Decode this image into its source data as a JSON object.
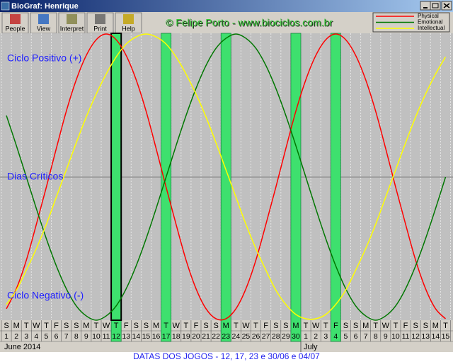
{
  "window": {
    "title": "BioGraf: Henrique",
    "toolbar": [
      "People",
      "View",
      "Interpret",
      "Print",
      "Help"
    ],
    "watermark": "© Felipe Porto - www.biociclos.com.br",
    "footer": "DATAS DOS JOGOS - 12, 17, 23 e 30/06 e 04/07"
  },
  "chart_data": {
    "type": "line",
    "annotations": [
      "Ciclo Positivo (+)",
      "Dias Críticos",
      "Ciclo Negativo (-)"
    ],
    "weekdays": [
      "S",
      "M",
      "T",
      "W",
      "T",
      "F",
      "S",
      "S",
      "M",
      "T",
      "W",
      "T",
      "F",
      "S",
      "S",
      "M",
      "T",
      "W",
      "T",
      "F",
      "S",
      "S",
      "M",
      "T",
      "W",
      "T",
      "F",
      "S",
      "S",
      "M",
      "T",
      "W",
      "T",
      "F",
      "S",
      "S",
      "M",
      "T",
      "W",
      "T",
      "F",
      "S",
      "S",
      "M",
      "T"
    ],
    "categories": [
      1,
      2,
      3,
      4,
      5,
      6,
      7,
      8,
      9,
      10,
      11,
      12,
      13,
      14,
      15,
      16,
      17,
      18,
      19,
      20,
      21,
      22,
      23,
      24,
      25,
      26,
      27,
      28,
      29,
      30,
      1,
      2,
      3,
      4,
      5,
      6,
      7,
      8,
      9,
      10,
      11,
      12,
      13,
      14,
      15
    ],
    "months": [
      "June 2014",
      "July"
    ],
    "series": [
      {
        "name": "Physical",
        "color": "#ff0000",
        "values": [
          -92,
          -78,
          -58,
          -33,
          -7,
          20,
          46,
          68,
          85,
          96,
          100,
          96,
          85,
          68,
          46,
          20,
          -7,
          -33,
          -58,
          -78,
          -92,
          -99,
          -99,
          -92,
          -78,
          -58,
          -33,
          -7,
          20,
          46,
          68,
          85,
          96,
          100,
          96,
          85,
          68,
          46,
          20,
          -7,
          -33,
          -58,
          -78,
          -92,
          -99
        ]
      },
      {
        "name": "Emotional",
        "color": "#007700",
        "values": [
          43,
          22,
          0,
          -22,
          -43,
          -62,
          -78,
          -90,
          -97,
          -100,
          -97,
          -90,
          -78,
          -62,
          -43,
          -22,
          0,
          22,
          43,
          62,
          78,
          90,
          97,
          100,
          97,
          90,
          78,
          62,
          43,
          22,
          0,
          -22,
          -43,
          -62,
          -78,
          -90,
          -97,
          -100,
          -97,
          -90,
          -78,
          -62,
          -43,
          -22,
          0
        ]
      },
      {
        "name": "Intellectual",
        "color": "#ffff00",
        "values": [
          -89,
          -79,
          -65,
          -50,
          -33,
          -14,
          5,
          24,
          42,
          58,
          72,
          84,
          93,
          98,
          100,
          98,
          93,
          84,
          72,
          58,
          42,
          24,
          5,
          -14,
          -33,
          -50,
          -65,
          -79,
          -89,
          -96,
          -99,
          -99,
          -96,
          -89,
          -79,
          -65,
          -50,
          -33,
          -14,
          5,
          24,
          42,
          58,
          72,
          84
        ]
      }
    ],
    "ylim": [
      -100,
      100
    ],
    "highlights": [
      11,
      16,
      22,
      29,
      33
    ],
    "selected": 11,
    "legend": "top-right"
  }
}
